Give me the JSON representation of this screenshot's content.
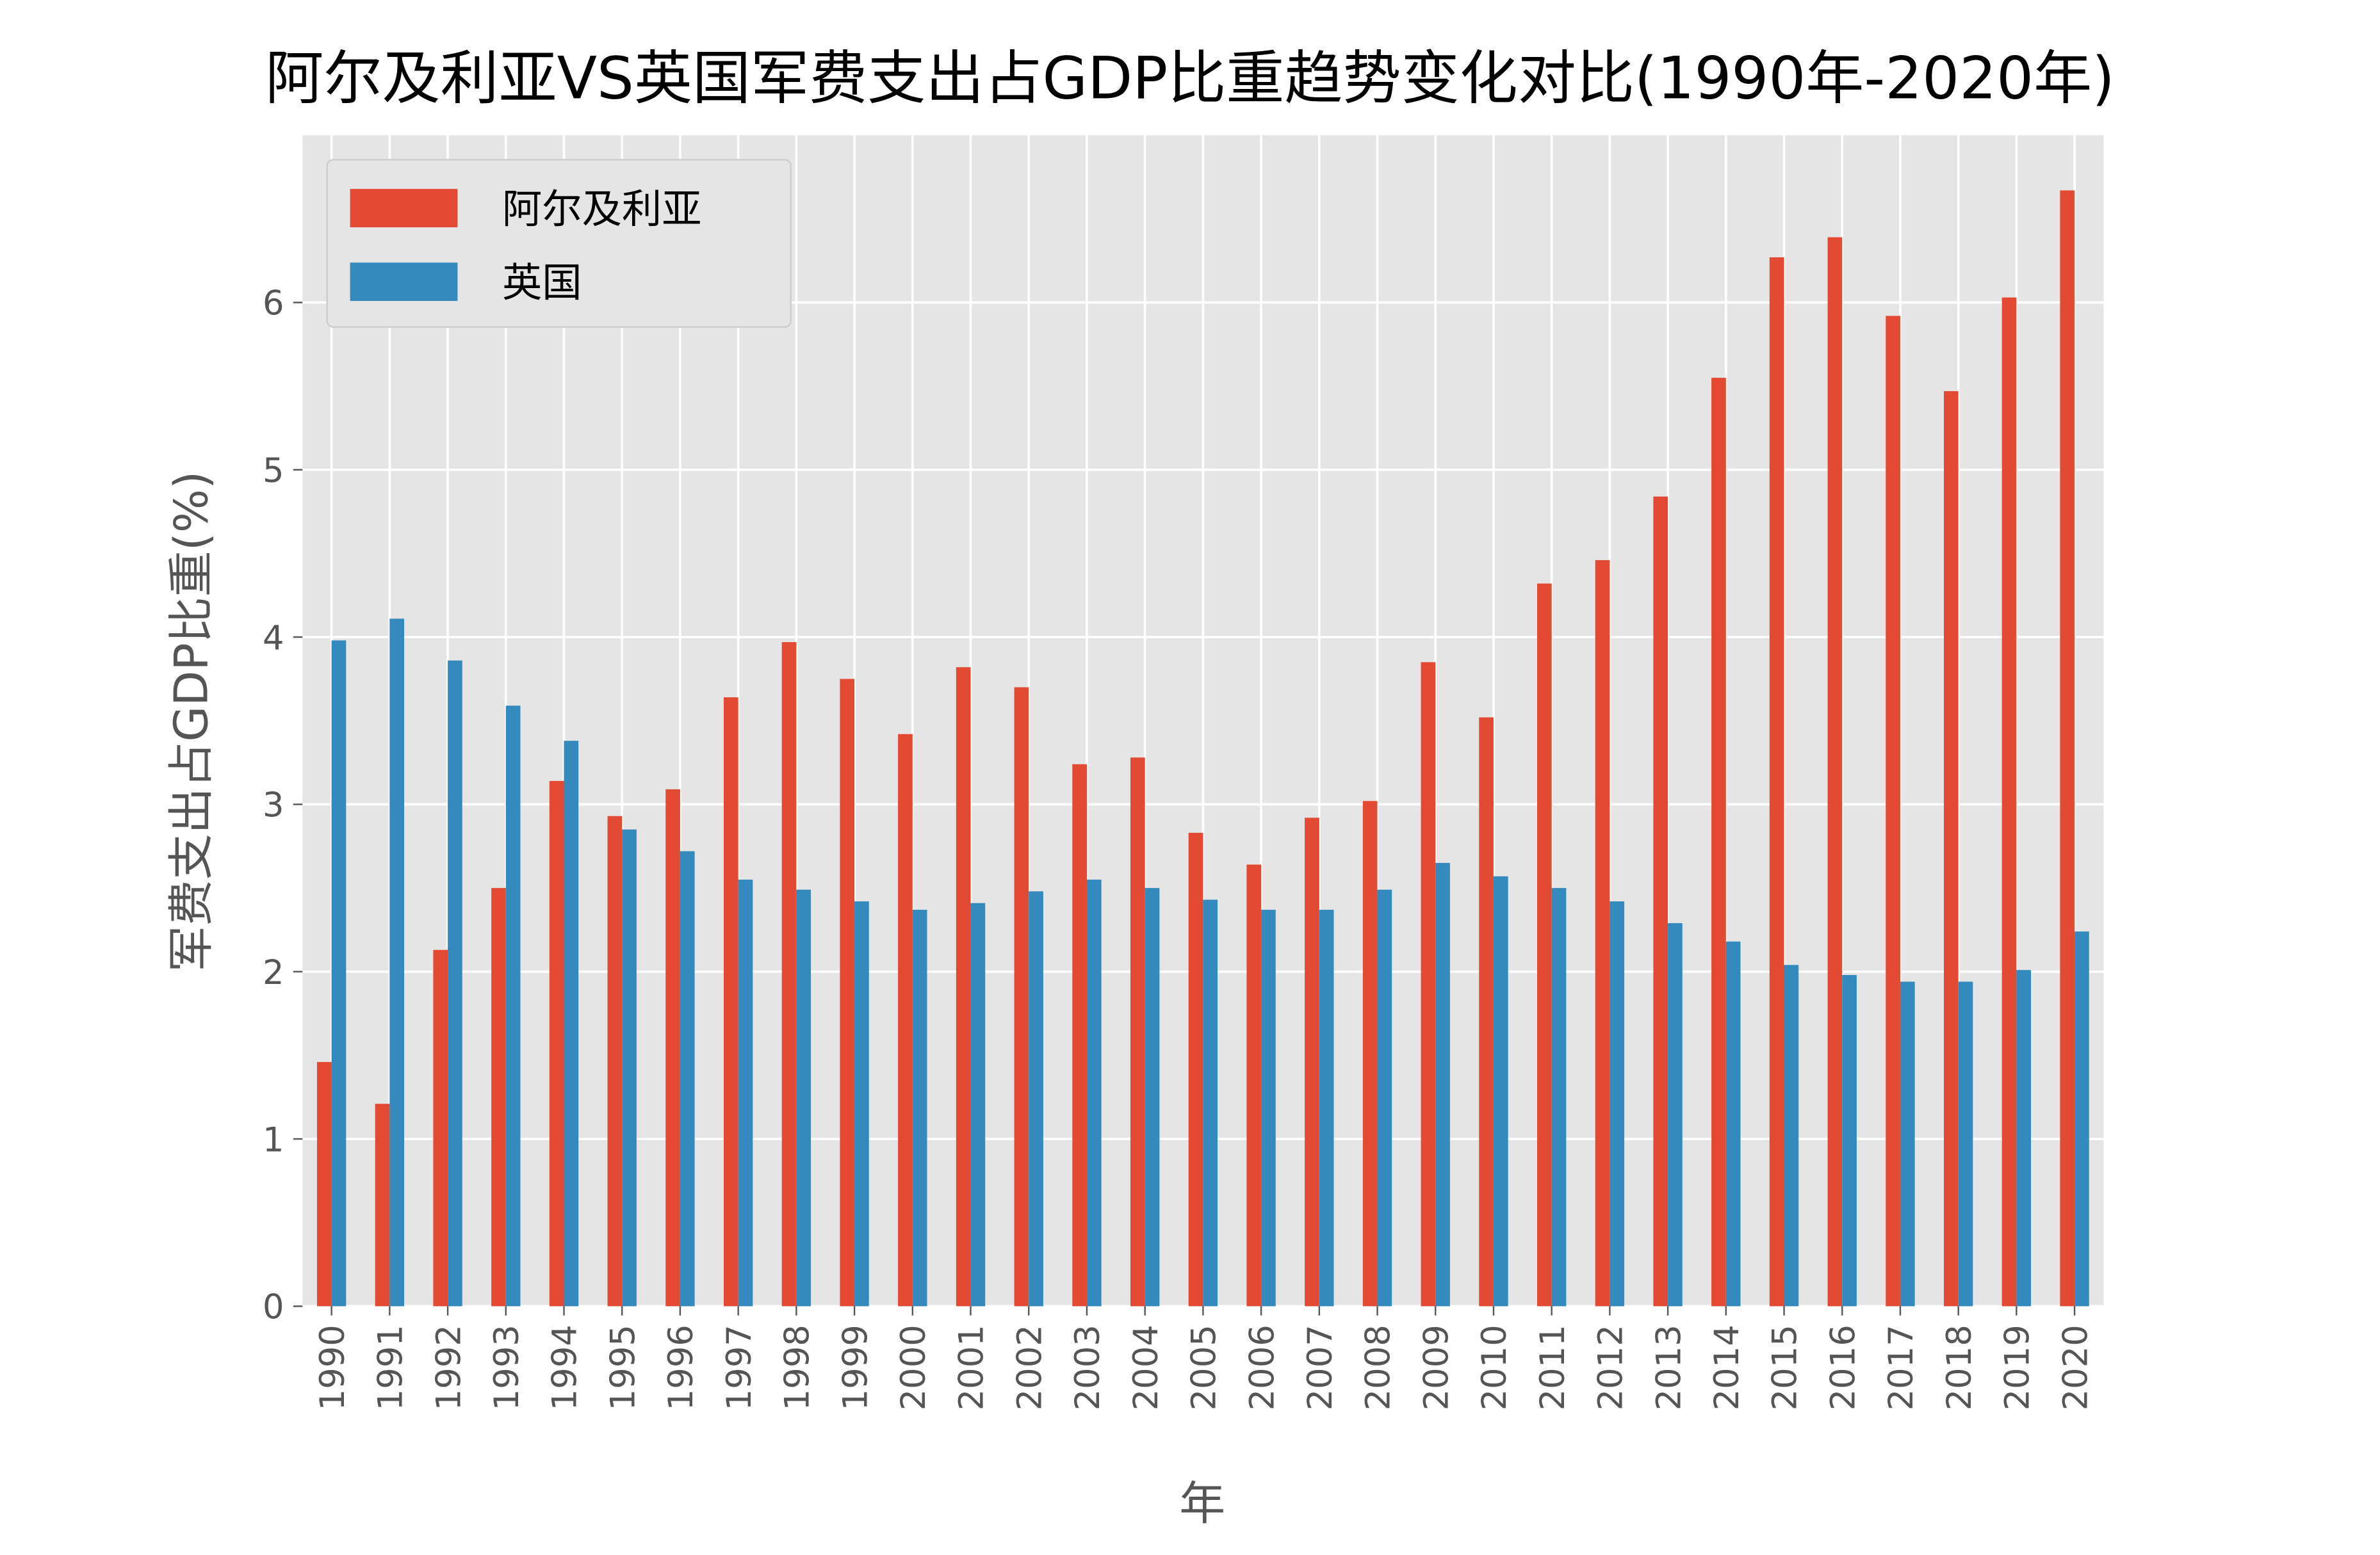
{
  "chart_data": {
    "type": "bar",
    "title": "阿尔及利亚VS英国军费支出占GDP比重趋势变化对比(1990年-2020年)",
    "xlabel": "年",
    "ylabel": "军费支出占GDP比重(%)",
    "ylim": [
      0,
      7
    ],
    "yticks": [
      "0",
      "1",
      "2",
      "3",
      "4",
      "5",
      "6"
    ],
    "grid": true,
    "legend_position": "top-left",
    "background": "#E5E5E5",
    "categories": [
      "1990",
      "1991",
      "1992",
      "1993",
      "1994",
      "1995",
      "1996",
      "1997",
      "1998",
      "1999",
      "2000",
      "2001",
      "2002",
      "2003",
      "2004",
      "2005",
      "2006",
      "2007",
      "2008",
      "2009",
      "2010",
      "2011",
      "2012",
      "2013",
      "2014",
      "2015",
      "2016",
      "2017",
      "2018",
      "2019",
      "2020"
    ],
    "series": [
      {
        "name": "阿尔及利亚",
        "color": "#E24A33",
        "values": [
          1.46,
          1.21,
          2.13,
          2.5,
          3.14,
          2.93,
          3.09,
          3.64,
          3.97,
          3.75,
          3.42,
          3.82,
          3.7,
          3.24,
          3.28,
          2.83,
          2.64,
          2.92,
          3.02,
          3.85,
          3.52,
          4.32,
          4.46,
          4.84,
          5.55,
          6.27,
          6.39,
          5.92,
          5.47,
          6.03,
          6.67
        ]
      },
      {
        "name": "英国",
        "color": "#348ABD",
        "values": [
          3.98,
          4.11,
          3.86,
          3.59,
          3.38,
          2.85,
          2.72,
          2.55,
          2.49,
          2.42,
          2.37,
          2.41,
          2.48,
          2.55,
          2.5,
          2.43,
          2.37,
          2.37,
          2.49,
          2.65,
          2.57,
          2.5,
          2.42,
          2.29,
          2.18,
          2.04,
          1.98,
          1.94,
          1.94,
          2.01,
          2.24
        ]
      }
    ]
  }
}
